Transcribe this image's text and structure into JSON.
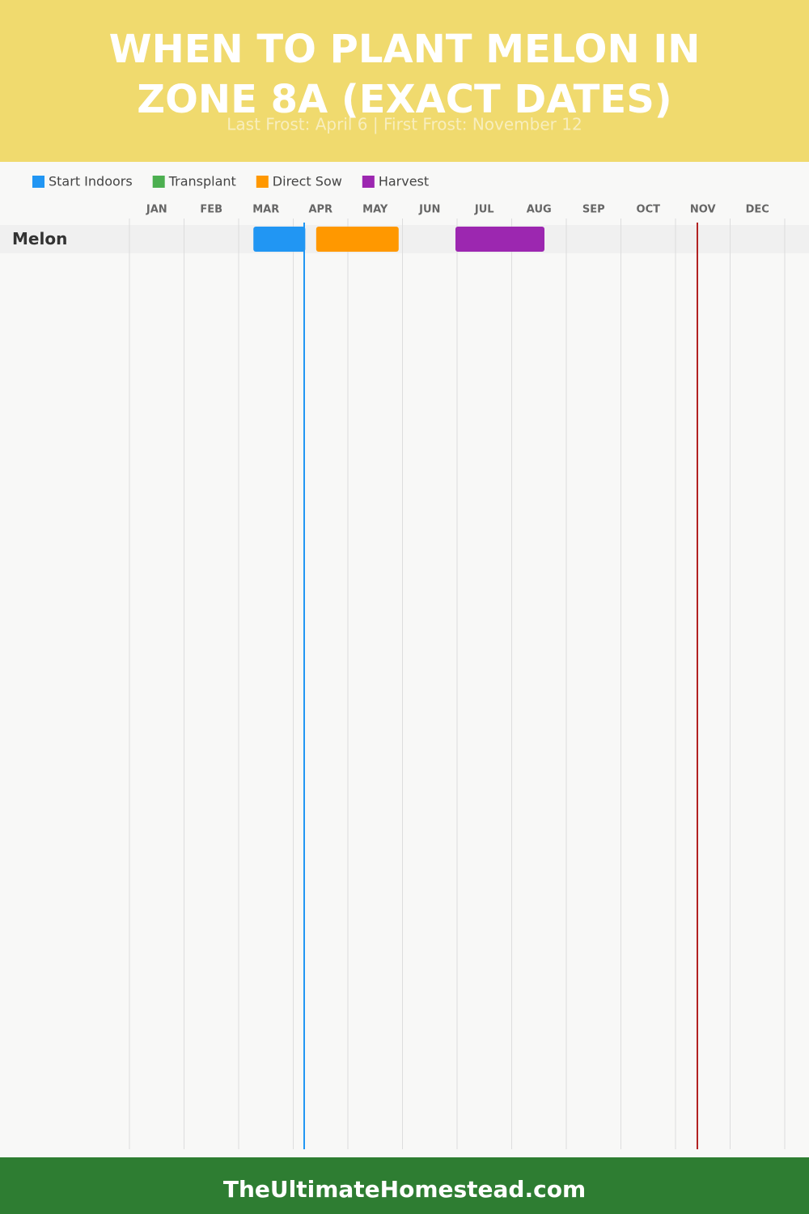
{
  "chart_data": {
    "type": "gantt",
    "title": "When to Plant Melon in Zone 8a (Exact Dates)",
    "subtitle": "Last Frost: April 6 | First Frost: November 12",
    "xlim": [
      0,
      12
    ],
    "xticks": [
      {
        "value": 0.5,
        "label": "JAN"
      },
      {
        "value": 1.5,
        "label": "FEB"
      },
      {
        "value": 2.5,
        "label": "MAR"
      },
      {
        "value": 3.5,
        "label": "APR"
      },
      {
        "value": 4.5,
        "label": "MAY"
      },
      {
        "value": 5.5,
        "label": "JUN"
      },
      {
        "value": 6.5,
        "label": "JUL"
      },
      {
        "value": 7.5,
        "label": "AUG"
      },
      {
        "value": 8.5,
        "label": "SEP"
      },
      {
        "value": 9.5,
        "label": "OCT"
      },
      {
        "value": 10.5,
        "label": "NOV"
      },
      {
        "value": 11.5,
        "label": "DEC"
      }
    ],
    "categories": [
      "Melon"
    ],
    "series": [
      {
        "name": "Start Indoors",
        "color": "#2196f3",
        "values": [
          [
            2.27,
            3.22
          ]
        ]
      },
      {
        "name": "Transplant",
        "color": "#4caf50",
        "values": [
          null
        ]
      },
      {
        "name": "Direct Sow",
        "color": "#ff9800",
        "values": [
          [
            3.42,
            4.93
          ]
        ]
      },
      {
        "name": "Harvest",
        "color": "#9c27b0",
        "values": [
          [
            5.97,
            7.6
          ]
        ]
      }
    ],
    "frost_lines": [
      {
        "value": 3.2,
        "color": "#2196f3"
      },
      {
        "value": 10.4,
        "color": "#b22222"
      }
    ],
    "grid": true
  },
  "footer": "TheUltimateHomestead.com"
}
